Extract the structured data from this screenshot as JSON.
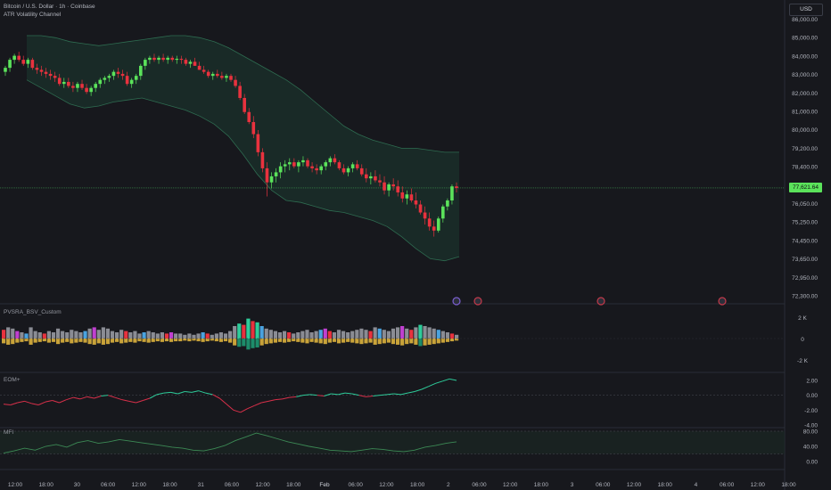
{
  "header": {
    "symbol_line": "Bitcoin / U.S. Dollar · 1h · Coinbase",
    "indicator_line": "ATR Volatility Channel",
    "currency_button": "USD"
  },
  "price_axis": {
    "labels": [
      "86,000.00",
      "85,000.00",
      "84,000.00",
      "83,000.00",
      "82,000.00",
      "81,000.00",
      "80,000.00",
      "79,200.00",
      "78,400.00",
      "76,800.00",
      "76,050.00",
      "75,250.00",
      "74,450.00",
      "73,650.00",
      "72,950.00",
      "72,300.00"
    ],
    "current_price": "77,621.64"
  },
  "time_axis": {
    "labels": [
      "12:00",
      "18:00",
      "30",
      "06:00",
      "12:00",
      "18:00",
      "31",
      "06:00",
      "12:00",
      "18:00",
      "Feb",
      "06:00",
      "12:00",
      "18:00",
      "2",
      "06:00",
      "12:00",
      "18:00",
      "3",
      "06:00",
      "12:00",
      "18:00",
      "4",
      "06:00",
      "12:00",
      "18:00"
    ]
  },
  "panes": {
    "volume": {
      "title": "PVSRA_BSV_Custom",
      "axis_labels": [
        "2 K",
        "0",
        "-2 K"
      ]
    },
    "eom": {
      "title": "EOM+",
      "axis_labels": [
        "2.00",
        "0.00",
        "-2.00",
        "-4.00"
      ]
    },
    "mfi": {
      "title": "MFI",
      "axis_labels": [
        "80.00",
        "40.00",
        "0.00"
      ]
    }
  },
  "colors": {
    "background": "#17181d",
    "bull": "#5be35b",
    "bear": "#e8323e",
    "channel_fill": "#1c3a30",
    "channel_line": "#2e6b50",
    "eom_up": "#2ecc9a",
    "eom_down": "#d8304a",
    "mfi_line": "#3c8a55"
  },
  "chart_data": [
    {
      "type": "candlestick",
      "title": "Bitcoin / U.S. Dollar · 1h · Coinbase",
      "ylim": [
        72300,
        86000
      ],
      "current_price": 77621.64,
      "ohlc": [
        [
          83400,
          83700,
          83200,
          83600
        ],
        [
          83600,
          84100,
          83400,
          84000
        ],
        [
          84000,
          84300,
          83800,
          84200
        ],
        [
          84200,
          84400,
          83900,
          84000
        ],
        [
          84000,
          84200,
          83700,
          83800
        ],
        [
          83800,
          84100,
          83600,
          84000
        ],
        [
          84000,
          84100,
          83500,
          83600
        ],
        [
          83600,
          83800,
          83300,
          83500
        ],
        [
          83500,
          83700,
          83200,
          83400
        ],
        [
          83400,
          83600,
          83100,
          83300
        ],
        [
          83300,
          83500,
          83000,
          83200
        ],
        [
          83200,
          83400,
          82900,
          83100
        ],
        [
          83100,
          83300,
          82700,
          82800
        ],
        [
          82800,
          83100,
          82600,
          82900
        ],
        [
          82900,
          83100,
          82600,
          82700
        ],
        [
          82700,
          82900,
          82400,
          82600
        ],
        [
          82600,
          82900,
          82400,
          82800
        ],
        [
          82800,
          83000,
          82500,
          82600
        ],
        [
          82600,
          82800,
          82300,
          82400
        ],
        [
          82400,
          82700,
          82200,
          82600
        ],
        [
          82600,
          82900,
          82400,
          82800
        ],
        [
          82800,
          83100,
          82600,
          83000
        ],
        [
          83000,
          83200,
          82800,
          83100
        ],
        [
          83100,
          83300,
          82900,
          83200
        ],
        [
          83200,
          83500,
          83000,
          83400
        ],
        [
          83400,
          83600,
          83100,
          83300
        ],
        [
          83300,
          83500,
          83000,
          83200
        ],
        [
          83200,
          83400,
          82700,
          82800
        ],
        [
          82800,
          83100,
          82600,
          83000
        ],
        [
          83000,
          83300,
          82800,
          83200
        ],
        [
          83200,
          83800,
          83000,
          83700
        ],
        [
          83700,
          84100,
          83500,
          84000
        ],
        [
          84000,
          84200,
          83800,
          84100
        ],
        [
          84100,
          84300,
          83900,
          84000
        ],
        [
          84000,
          84200,
          83800,
          84100
        ],
        [
          84100,
          84300,
          83900,
          84000
        ],
        [
          84000,
          84200,
          83800,
          84100
        ],
        [
          84100,
          84200,
          83900,
          84000
        ],
        [
          84000,
          84200,
          83800,
          84050
        ],
        [
          84050,
          84200,
          83800,
          84000
        ],
        [
          84000,
          84100,
          83700,
          83800
        ],
        [
          83800,
          84000,
          83600,
          83900
        ],
        [
          83900,
          84100,
          83700,
          83700
        ],
        [
          83700,
          83900,
          83500,
          83500
        ],
        [
          83500,
          83700,
          83300,
          83400
        ],
        [
          83400,
          83500,
          83100,
          83200
        ],
        [
          83200,
          83400,
          83000,
          83300
        ],
        [
          83300,
          83500,
          83100,
          83200
        ],
        [
          83200,
          83400,
          83000,
          83100
        ],
        [
          83100,
          83300,
          82900,
          83200
        ],
        [
          83200,
          83300,
          82900,
          83000
        ],
        [
          83000,
          83200,
          82600,
          82700
        ],
        [
          82700,
          82900,
          82000,
          82100
        ],
        [
          82100,
          82300,
          81300,
          81400
        ],
        [
          81400,
          81600,
          80800,
          80900
        ],
        [
          80900,
          81200,
          80100,
          80300
        ],
        [
          80300,
          80500,
          79200,
          79400
        ],
        [
          79400,
          79600,
          78400,
          78600
        ],
        [
          78600,
          78900,
          77200,
          77900
        ],
        [
          77900,
          78400,
          77600,
          78200
        ],
        [
          78200,
          78600,
          77900,
          78400
        ],
        [
          78400,
          78900,
          78100,
          78700
        ],
        [
          78700,
          79000,
          78400,
          78800
        ],
        [
          78800,
          79100,
          78500,
          78900
        ],
        [
          78900,
          79100,
          78600,
          78700
        ],
        [
          78700,
          79000,
          78400,
          78900
        ],
        [
          78900,
          79200,
          78700,
          79000
        ],
        [
          79000,
          79100,
          78600,
          78700
        ],
        [
          78700,
          78900,
          78400,
          78600
        ],
        [
          78600,
          78800,
          78300,
          78500
        ],
        [
          78500,
          78800,
          78300,
          78700
        ],
        [
          78700,
          79000,
          78500,
          78900
        ],
        [
          78900,
          79200,
          78700,
          79100
        ],
        [
          79100,
          79300,
          78800,
          78900
        ],
        [
          78900,
          79000,
          78500,
          78600
        ],
        [
          78600,
          78800,
          78300,
          78400
        ],
        [
          78400,
          78700,
          78200,
          78600
        ],
        [
          78600,
          78900,
          78400,
          78800
        ],
        [
          78800,
          79000,
          78500,
          78600
        ],
        [
          78600,
          78800,
          78200,
          78300
        ],
        [
          78300,
          78600,
          77900,
          78100
        ],
        [
          78100,
          78400,
          77800,
          78200
        ],
        [
          78200,
          78500,
          77900,
          78000
        ],
        [
          78000,
          78300,
          77700,
          77900
        ],
        [
          77900,
          78200,
          77300,
          77500
        ],
        [
          77500,
          77900,
          77200,
          77800
        ],
        [
          77800,
          78100,
          77500,
          77700
        ],
        [
          77700,
          78000,
          77200,
          77400
        ],
        [
          77400,
          77700,
          76900,
          77100
        ],
        [
          77100,
          77500,
          76800,
          77300
        ],
        [
          77300,
          77600,
          76900,
          77000
        ],
        [
          77000,
          77400,
          76600,
          76800
        ],
        [
          76800,
          77000,
          76300,
          76400
        ],
        [
          76400,
          76700,
          75800,
          76100
        ],
        [
          76100,
          76400,
          75500,
          75700
        ],
        [
          75700,
          76000,
          75200,
          75500
        ],
        [
          75500,
          76200,
          75400,
          76100
        ],
        [
          76100,
          76800,
          75900,
          76700
        ],
        [
          76700,
          77100,
          76500,
          77000
        ],
        [
          77000,
          77800,
          76800,
          77700
        ],
        [
          77700,
          77900,
          77400,
          77621.64
        ]
      ],
      "channel_upper": [
        85200,
        85200,
        85100,
        84900,
        84800,
        84700,
        84800,
        84900,
        85000,
        85100,
        85200,
        85200,
        85100,
        84900,
        84600,
        84200,
        83800,
        83400,
        83000,
        82500,
        81900,
        81300,
        80700,
        80300,
        80000,
        79800,
        79600,
        79600,
        79500,
        79400,
        79400
      ],
      "channel_lower": [
        83000,
        82600,
        82200,
        81800,
        81600,
        81700,
        81900,
        82000,
        82100,
        81900,
        81700,
        81500,
        81200,
        80800,
        80200,
        79300,
        78300,
        77500,
        77000,
        76900,
        76700,
        76500,
        76400,
        76200,
        76000,
        75700,
        75200,
        74600,
        74100,
        74000,
        74200
      ]
    },
    {
      "type": "bar",
      "title": "PVSRA_BSV_Custom",
      "ylim": [
        -2000,
        2000
      ],
      "values": [
        700,
        900,
        800,
        600,
        500,
        400,
        900,
        600,
        500,
        400,
        600,
        500,
        800,
        600,
        500,
        700,
        600,
        500,
        600,
        800,
        900,
        700,
        900,
        800,
        600,
        500,
        700,
        600,
        500,
        600,
        400,
        500,
        600,
        500,
        400,
        500,
        400,
        500,
        400,
        400,
        300,
        400,
        300,
        400,
        500,
        400,
        300,
        400,
        500,
        400,
        600,
        1000,
        1200,
        1100,
        1600,
        1400,
        1300,
        1000,
        800,
        700,
        600,
        500,
        600,
        500,
        400,
        500,
        600,
        700,
        500,
        600,
        700,
        800,
        600,
        500,
        700,
        600,
        500,
        600,
        700,
        800,
        700,
        600,
        900,
        800,
        700,
        600,
        800,
        900,
        1000,
        800,
        700,
        900,
        1100,
        1000,
        900,
        800,
        700,
        600,
        500,
        400,
        300
      ]
    },
    {
      "type": "line",
      "title": "EOM+",
      "ylim": [
        -4,
        2
      ],
      "values": [
        -1.2,
        -1.3,
        -1.0,
        -0.8,
        -1.1,
        -1.3,
        -0.9,
        -0.7,
        -1.0,
        -0.6,
        -0.3,
        -0.5,
        -0.2,
        -0.4,
        -0.1,
        0.0,
        -0.3,
        -0.6,
        -0.8,
        -1.0,
        -0.7,
        -0.4,
        0.1,
        0.3,
        0.4,
        0.2,
        0.5,
        0.4,
        0.6,
        0.3,
        0.1,
        -0.4,
        -1.2,
        -2.0,
        -2.3,
        -1.8,
        -1.4,
        -1.0,
        -0.8,
        -0.6,
        -0.5,
        -0.3,
        -0.2,
        0.0,
        0.1,
        0.0,
        -0.1,
        0.2,
        0.1,
        0.3,
        0.2,
        0.0,
        -0.2,
        -0.1,
        0.0,
        0.1,
        0.2,
        0.1,
        0.3,
        0.5,
        0.8,
        1.2,
        1.6,
        1.9,
        2.2,
        2.0
      ]
    },
    {
      "type": "line",
      "title": "MFI",
      "ylim": [
        0,
        80
      ],
      "values": [
        22,
        28,
        35,
        30,
        40,
        45,
        38,
        50,
        55,
        48,
        52,
        58,
        54,
        50,
        46,
        42,
        38,
        35,
        30,
        28,
        34,
        42,
        55,
        65,
        75,
        68,
        60,
        52,
        46,
        40,
        35,
        30,
        28,
        26,
        30,
        34,
        32,
        28,
        26,
        30,
        38,
        42,
        48,
        52
      ]
    }
  ]
}
